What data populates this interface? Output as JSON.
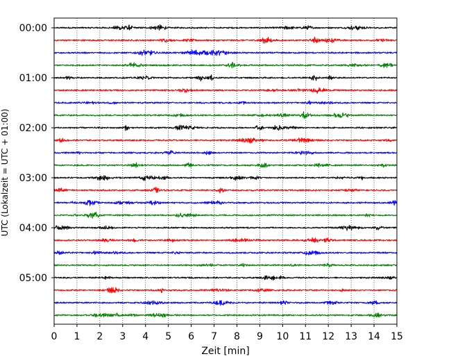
{
  "chart_data": {
    "type": "line",
    "title": "",
    "xlabel": "Zeit  [min]",
    "ylabel": "UTC (Lokalzeit = UTC + 01:00)",
    "xlim": [
      0,
      15
    ],
    "x_ticks": [
      0,
      1,
      2,
      3,
      4,
      5,
      6,
      7,
      8,
      9,
      10,
      11,
      12,
      13,
      14,
      15
    ],
    "x_tick_labels": [
      "0",
      "1",
      "2",
      "3",
      "4",
      "5",
      "6",
      "7",
      "8",
      "9",
      "10",
      "11",
      "12",
      "13",
      "14",
      "15"
    ],
    "y_tick_labels": [
      "00:00",
      "01:00",
      "02:00",
      "03:00",
      "04:00",
      "05:00"
    ],
    "y_tick_rows": [
      0,
      4,
      8,
      12,
      16,
      20
    ],
    "grid": "vertical dotted",
    "legend": "none",
    "trace_minutes": 15,
    "trace_colors": [
      "#000000",
      "#ff0000",
      "#0000ff",
      "#008000"
    ],
    "traces": [
      {
        "start": "00:00",
        "color": "#000000"
      },
      {
        "start": "00:15",
        "color": "#ff0000"
      },
      {
        "start": "00:30",
        "color": "#0000ff"
      },
      {
        "start": "00:45",
        "color": "#008000"
      },
      {
        "start": "01:00",
        "color": "#000000"
      },
      {
        "start": "01:15",
        "color": "#ff0000"
      },
      {
        "start": "01:30",
        "color": "#0000ff"
      },
      {
        "start": "01:45",
        "color": "#008000"
      },
      {
        "start": "02:00",
        "color": "#000000"
      },
      {
        "start": "02:15",
        "color": "#ff0000"
      },
      {
        "start": "02:30",
        "color": "#0000ff"
      },
      {
        "start": "02:45",
        "color": "#008000"
      },
      {
        "start": "03:00",
        "color": "#000000"
      },
      {
        "start": "03:15",
        "color": "#ff0000"
      },
      {
        "start": "03:30",
        "color": "#0000ff"
      },
      {
        "start": "03:45",
        "color": "#008000"
      },
      {
        "start": "04:00",
        "color": "#000000"
      },
      {
        "start": "04:15",
        "color": "#ff0000"
      },
      {
        "start": "04:30",
        "color": "#0000ff"
      },
      {
        "start": "04:45",
        "color": "#008000"
      },
      {
        "start": "05:00",
        "color": "#000000"
      },
      {
        "start": "05:15",
        "color": "#ff0000"
      },
      {
        "start": "05:30",
        "color": "#0000ff"
      },
      {
        "start": "05:45",
        "color": "#008000"
      }
    ]
  }
}
